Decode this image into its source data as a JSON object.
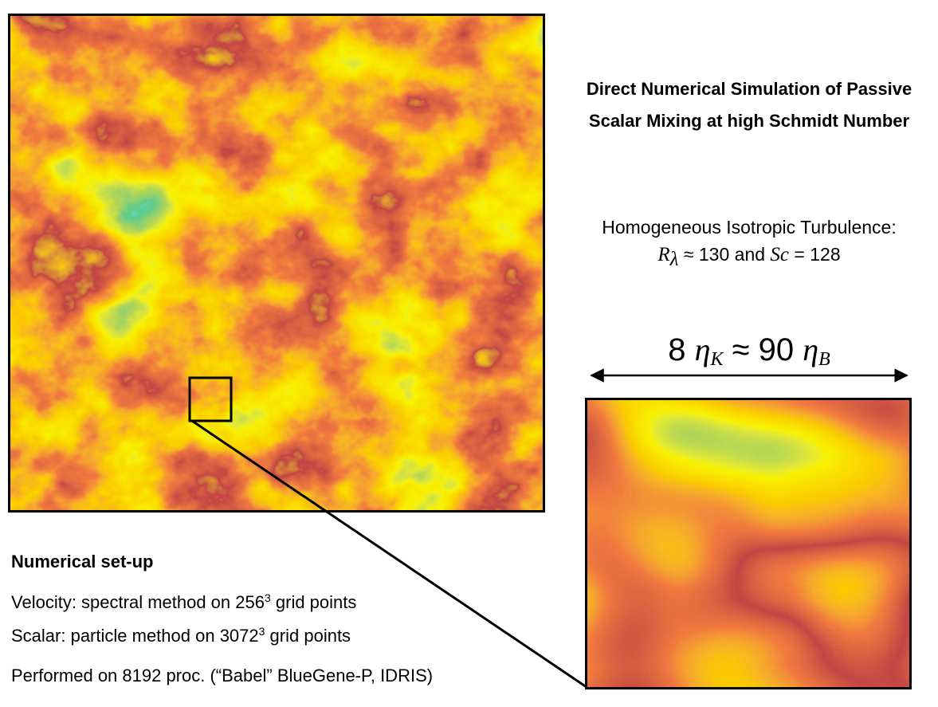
{
  "title": "Direct Numerical Simulation of Passive Scalar Mixing at high Schmidt Number",
  "turbulence": {
    "heading": "Homogeneous Isotropic Turbulence:",
    "re_symbol": "R",
    "re_sub": "λ",
    "re_value": "≈ 130 and",
    "sc_symbol": "Sc",
    "sc_value": "= 128"
  },
  "scale_label": {
    "left_count": "8",
    "eta": "η",
    "left_sub": "K",
    "approx": "≈ 90",
    "right_sub": "B"
  },
  "setup": {
    "heading": "Numerical set-up",
    "velocity_prefix": "Velocity: spectral method on 256",
    "velocity_exp": "3",
    "velocity_suffix": " grid points",
    "scalar_prefix": "Scalar: particle method on 3072",
    "scalar_exp": "3",
    "scalar_suffix": " grid points",
    "performed": "Performed on 8192 proc. (“Babel” BlueGene-P, IDRIS)"
  },
  "colors": {
    "frame": "#000000",
    "palette": [
      "#1a1aa0",
      "#1e8fd0",
      "#22d6d0",
      "#1f9a3c",
      "#6aa81a",
      "#f0e400",
      "#f59a00",
      "#e0340c",
      "#8a1010"
    ]
  }
}
